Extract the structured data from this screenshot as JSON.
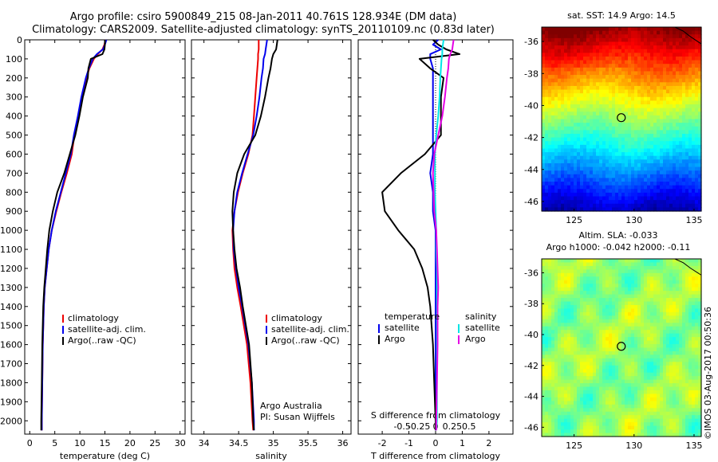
{
  "title_line1": "Argo profile: csiro 5900849_215 08-Jan-2011 40.761S 128.934E (DM data)",
  "title_line2": "Climatology: CARS2009. Satellite-adjusted climatology: synTS_20110109.nc (0.83d later)",
  "stamp": "©IMOS 03-Aug-2017 00:50:36",
  "colors": {
    "red": "#ee0000",
    "blue": "#0000ee",
    "black": "#000000",
    "cyan": "#00e5e5",
    "magenta": "#e500e5"
  },
  "chart_data": [
    {
      "id": "temperature",
      "type": "line",
      "xlabel": "temperature (deg C)",
      "ylim": [
        0,
        2070
      ],
      "xlim": [
        -1,
        31
      ],
      "xticks": [
        "0",
        "5",
        "10",
        "15",
        "20",
        "25",
        "30"
      ],
      "xtick_values": [
        0,
        5,
        10,
        15,
        20,
        25,
        30
      ],
      "yticks": [
        "0",
        "100",
        "200",
        "300",
        "400",
        "500",
        "600",
        "700",
        "800",
        "900",
        "1000",
        "1100",
        "1200",
        "1300",
        "1400",
        "1500",
        "1600",
        "1700",
        "1800",
        "1900",
        "2000"
      ],
      "ytick_values": [
        0,
        100,
        200,
        300,
        400,
        500,
        600,
        700,
        800,
        900,
        1000,
        1100,
        1200,
        1300,
        1400,
        1500,
        1600,
        1700,
        1800,
        1900,
        2000
      ],
      "depth": [
        0,
        25,
        50,
        75,
        100,
        150,
        200,
        300,
        400,
        500,
        600,
        700,
        800,
        900,
        1000,
        1100,
        1200,
        1300,
        1400,
        1600,
        1800,
        2000,
        2050
      ],
      "series": [
        {
          "name": "climatology",
          "color": "red",
          "values": [
            15.1,
            14.9,
            14.5,
            13.6,
            12.8,
            11.9,
            11.3,
            10.4,
            9.7,
            8.9,
            8.4,
            7.4,
            6.3,
            5.3,
            4.4,
            3.8,
            3.4,
            3.0,
            2.8,
            2.6,
            2.5,
            2.4,
            2.4
          ]
        },
        {
          "name": "satellite-adj. clim.",
          "color": "blue",
          "values": [
            15.3,
            15.0,
            14.6,
            13.4,
            12.6,
            11.8,
            11.2,
            10.3,
            9.6,
            8.8,
            8.2,
            7.2,
            6.2,
            5.2,
            4.4,
            3.8,
            3.4,
            3.0,
            2.8,
            2.6,
            2.5,
            2.4,
            2.4
          ]
        },
        {
          "name": "Argo(..raw -QC)",
          "color": "black",
          "values": [
            15.0,
            15.0,
            14.9,
            14.5,
            12.2,
            11.7,
            11.6,
            10.6,
            9.9,
            9.1,
            8.0,
            6.9,
            5.5,
            4.6,
            3.9,
            3.5,
            3.2,
            2.9,
            2.7,
            2.5,
            2.4,
            2.3,
            2.3
          ]
        }
      ],
      "legend": [
        "climatology",
        "satellite-adj. clim.",
        "Argo(..raw -QC)"
      ]
    },
    {
      "id": "salinity",
      "type": "line",
      "xlabel": "salinity",
      "ylim": [
        0,
        2070
      ],
      "xlim": [
        33.82,
        36.12
      ],
      "xticks": [
        "34",
        "34.5",
        "35",
        "35.5",
        "36"
      ],
      "xtick_values": [
        34,
        34.5,
        35,
        35.5,
        36
      ],
      "depth": [
        0,
        25,
        50,
        75,
        100,
        150,
        200,
        300,
        400,
        500,
        600,
        700,
        800,
        900,
        1000,
        1100,
        1200,
        1300,
        1400,
        1600,
        1800,
        2000,
        2050
      ],
      "series": [
        {
          "name": "climatology",
          "color": "red",
          "values": [
            34.79,
            34.79,
            34.79,
            34.78,
            34.78,
            34.77,
            34.76,
            34.74,
            34.72,
            34.7,
            34.64,
            34.56,
            34.49,
            34.44,
            34.41,
            34.42,
            34.44,
            34.48,
            34.53,
            34.62,
            34.67,
            34.7,
            34.71
          ]
        },
        {
          "name": "satellite-adj. clim.",
          "color": "blue",
          "values": [
            34.91,
            34.9,
            34.89,
            34.88,
            34.86,
            34.85,
            34.83,
            34.8,
            34.76,
            34.71,
            34.63,
            34.55,
            34.48,
            34.44,
            34.42,
            34.43,
            34.46,
            34.5,
            34.55,
            34.64,
            34.69,
            34.72,
            34.72
          ]
        },
        {
          "name": "Argo(..raw -QC)",
          "color": "black",
          "values": [
            35.06,
            35.05,
            35.04,
            35.0,
            34.98,
            34.96,
            34.93,
            34.88,
            34.82,
            34.74,
            34.58,
            34.48,
            34.43,
            34.41,
            34.42,
            34.44,
            34.47,
            34.52,
            34.56,
            34.65,
            34.69,
            34.71,
            34.72
          ]
        }
      ],
      "legend": [
        "climatology",
        "satellite-adj. clim.",
        "Argo(..raw -QC)"
      ],
      "annotation": [
        "Argo Australia",
        "PI: Susan Wijffels"
      ]
    },
    {
      "id": "differences",
      "type": "line",
      "xlabel": "T difference from climatology",
      "xlabel_top": "S difference from climatology",
      "ylim": [
        0,
        2070
      ],
      "xlim": [
        -2.9,
        2.9
      ],
      "xticks": [
        "-2",
        "-1",
        "0",
        "1",
        "2"
      ],
      "xtick_values": [
        -2,
        -1,
        0,
        1,
        2
      ],
      "sticks": [
        "-0.5",
        "-0.25",
        "0",
        "0.25",
        "0.5"
      ],
      "stick_values": [
        -0.5,
        -0.25,
        0,
        0.25,
        0.5
      ],
      "s_scale": 2.5,
      "depth": [
        0,
        25,
        50,
        75,
        100,
        150,
        200,
        300,
        400,
        500,
        600,
        700,
        800,
        900,
        1000,
        1100,
        1200,
        1300,
        1400,
        1600,
        1800,
        2000,
        2050
      ],
      "series": [
        {
          "name": "temperature satellite",
          "color": "blue",
          "kind": "T",
          "values": [
            0.1,
            -0.1,
            0.2,
            -0.2,
            -0.2,
            -0.1,
            -0.1,
            -0.1,
            -0.1,
            -0.1,
            -0.1,
            -0.2,
            -0.1,
            -0.1,
            0.0,
            0.0,
            0.0,
            0.0,
            0.0,
            0.0,
            0.0,
            0.0,
            0.0
          ]
        },
        {
          "name": "temperature Argo",
          "color": "black",
          "kind": "T",
          "values": [
            -0.1,
            0.1,
            0.4,
            0.9,
            -0.6,
            -0.2,
            0.3,
            0.2,
            0.2,
            0.2,
            -0.4,
            -1.3,
            -2.0,
            -1.9,
            -1.4,
            -0.8,
            -0.5,
            -0.3,
            -0.2,
            -0.1,
            -0.05,
            0.0,
            0.0
          ]
        },
        {
          "name": "salinity satellite",
          "color": "cyan",
          "kind": "S",
          "values": [
            0.12,
            0.11,
            0.1,
            0.1,
            0.09,
            0.08,
            0.07,
            0.06,
            0.04,
            0.01,
            -0.01,
            -0.01,
            -0.01,
            0.0,
            0.01,
            0.01,
            0.02,
            0.02,
            0.02,
            0.02,
            0.02,
            0.02,
            0.01
          ]
        },
        {
          "name": "salinity Argo",
          "color": "magenta",
          "kind": "S",
          "values": [
            0.27,
            0.26,
            0.25,
            0.22,
            0.2,
            0.19,
            0.17,
            0.14,
            0.1,
            0.04,
            -0.02,
            -0.04,
            -0.03,
            -0.02,
            0.01,
            0.02,
            0.03,
            0.04,
            0.03,
            0.03,
            0.02,
            0.01,
            0.01
          ]
        }
      ],
      "legend_temperature": {
        "title": "temperature",
        "items": [
          "satellite",
          "Argo"
        ]
      },
      "legend_salinity": {
        "title": "salinity",
        "items": [
          "satellite",
          "Argo"
        ]
      }
    },
    {
      "id": "sst_map",
      "type": "heatmap",
      "title": "sat. SST: 14.9 Argo: 14.5",
      "xlim": [
        122.3,
        135.6
      ],
      "ylim": [
        -46.6,
        -35.1
      ],
      "xticks": [
        "125",
        "130",
        "135"
      ],
      "xtick_values": [
        125,
        130,
        135
      ],
      "yticks": [
        "-36",
        "-38",
        "-40",
        "-42",
        "-44",
        "-46"
      ],
      "ytick_values": [
        -36,
        -38,
        -40,
        -42,
        -44,
        -46
      ],
      "marker": {
        "lon": 128.934,
        "lat": -40.761
      },
      "colormap": "jet"
    },
    {
      "id": "sla_map",
      "type": "heatmap",
      "title": "Altim. SLA: -0.033",
      "subtitle": "Argo h1000: -0.042 h2000: -0.11",
      "xlim": [
        122.3,
        135.6
      ],
      "ylim": [
        -46.6,
        -35.1
      ],
      "xticks": [
        "125",
        "130",
        "135"
      ],
      "xtick_values": [
        125,
        130,
        135
      ],
      "yticks": [
        "-36",
        "-38",
        "-40",
        "-42",
        "-44",
        "-46"
      ],
      "ytick_values": [
        -36,
        -38,
        -40,
        -42,
        -44,
        -46
      ],
      "marker": {
        "lon": 128.934,
        "lat": -40.761
      },
      "colormap": "green-blotches"
    }
  ]
}
